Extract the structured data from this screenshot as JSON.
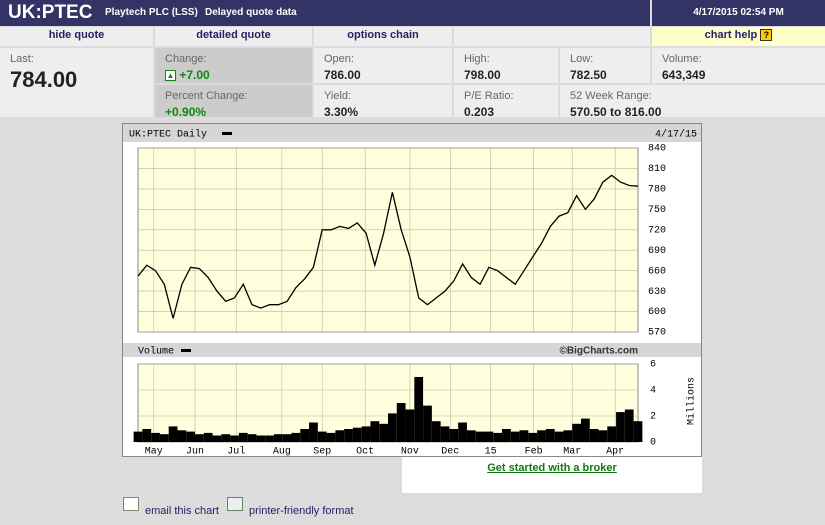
{
  "header": {
    "symbol": "UK:PTEC",
    "name": "Playtech PLC (LSS)",
    "note": "Delayed quote data",
    "timestamp": "4/17/2015 02:54 PM"
  },
  "tabs": [
    "hide quote",
    "detailed quote",
    "options chain",
    "chart help"
  ],
  "quote": {
    "last": {
      "label": "Last:",
      "value": "784.00"
    },
    "change": {
      "label": "Change:",
      "value": "+7.00"
    },
    "percent_change": {
      "label": "Percent Change:",
      "value": "+0.90%"
    },
    "open": {
      "label": "Open:",
      "value": "786.00"
    },
    "yield": {
      "label": "Yield:",
      "value": "3.30%"
    },
    "high": {
      "label": "High:",
      "value": "798.00"
    },
    "pe": {
      "label": "P/E Ratio:",
      "value": "0.203"
    },
    "low": {
      "label": "Low:",
      "value": "782.50"
    },
    "range": {
      "label": "52 Week Range:",
      "value": "570.50 to 816.00"
    },
    "volume": {
      "label": "Volume:",
      "value": "643,349"
    }
  },
  "chart": {
    "type": "line",
    "title": "UK:PTEC Daily",
    "date": "4/17/15",
    "volume_label": "Volume",
    "credit": "©BigCharts.com",
    "volume_axis_label": "Millions",
    "xlim": [
      0,
      57
    ],
    "xticks": [
      {
        "value": 1.8,
        "label": "May"
      },
      {
        "value": 6.5,
        "label": "Jun"
      },
      {
        "value": 11.2,
        "label": "Jul"
      },
      {
        "value": 16.4,
        "label": "Aug"
      },
      {
        "value": 21,
        "label": "Sep"
      },
      {
        "value": 25.9,
        "label": "Oct"
      },
      {
        "value": 31,
        "label": "Nov"
      },
      {
        "value": 35.6,
        "label": "Dec"
      },
      {
        "value": 40.2,
        "label": "15"
      },
      {
        "value": 45.1,
        "label": "Feb"
      },
      {
        "value": 49.5,
        "label": "Mar"
      },
      {
        "value": 54.4,
        "label": "Apr"
      }
    ],
    "ylim": [
      570,
      840
    ],
    "yticks": [
      570,
      600,
      630,
      660,
      690,
      720,
      750,
      780,
      810,
      840
    ],
    "color": "#000000",
    "grid": true,
    "values": [
      652,
      668,
      660,
      640,
      590,
      640,
      665,
      663,
      650,
      630,
      615,
      620,
      640,
      610,
      605,
      610,
      610,
      615,
      635,
      648,
      665,
      720,
      720,
      725,
      722,
      730,
      715,
      668,
      715,
      775,
      720,
      680,
      620,
      610,
      620,
      630,
      645,
      670,
      650,
      640,
      665,
      660,
      650,
      640,
      660,
      680,
      700,
      725,
      740,
      745,
      770,
      750,
      765,
      790,
      800,
      790,
      785,
      784
    ],
    "volume": {
      "ylim": [
        0,
        6
      ],
      "yticks": [
        0,
        2,
        4,
        6
      ],
      "color": "#000000",
      "values": [
        0.8,
        1.0,
        0.7,
        0.6,
        1.2,
        0.9,
        0.8,
        0.6,
        0.7,
        0.5,
        0.6,
        0.5,
        0.7,
        0.6,
        0.5,
        0.5,
        0.6,
        0.6,
        0.7,
        1.0,
        1.5,
        0.8,
        0.7,
        0.9,
        1.0,
        1.1,
        1.2,
        1.6,
        1.4,
        2.2,
        3.0,
        2.5,
        5.0,
        2.8,
        1.6,
        1.2,
        1.0,
        1.5,
        0.9,
        0.8,
        0.8,
        0.7,
        1.0,
        0.8,
        0.9,
        0.7,
        0.9,
        1.0,
        0.8,
        0.9,
        1.4,
        1.8,
        1.0,
        0.9,
        1.2,
        2.3,
        2.5,
        1.6
      ]
    }
  },
  "links": {
    "broker": "Get started with a broker",
    "email": "email this chart",
    "print": "printer-friendly format"
  }
}
